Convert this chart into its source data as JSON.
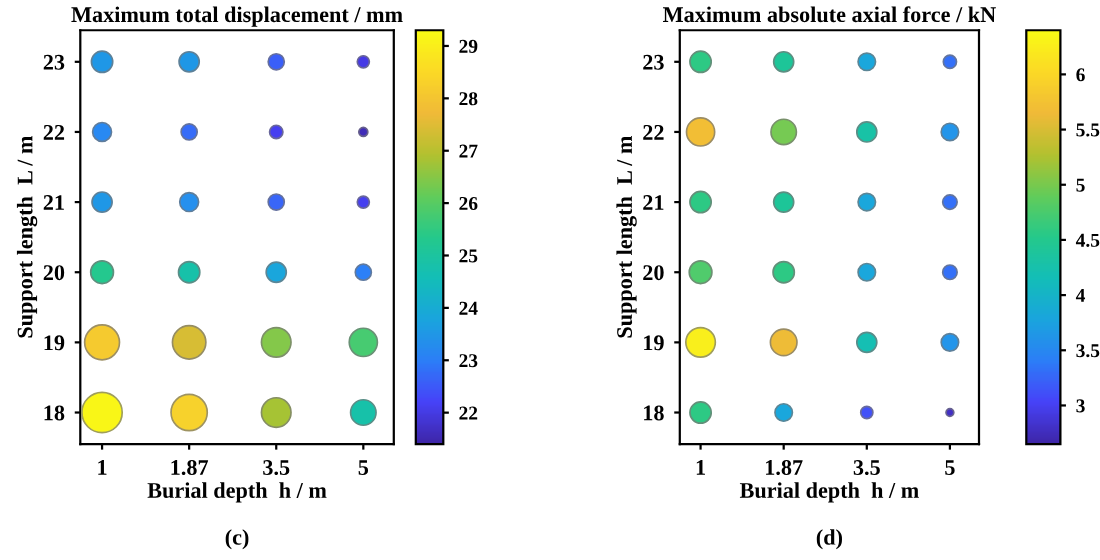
{
  "chart_data": [
    {
      "type": "bubble",
      "title": "Maximum total displacement / mm",
      "xlabel": "Burial depth  h / m",
      "ylabel": "Support length  L / m",
      "categories": [
        "1",
        "1.87",
        "3.5",
        "5"
      ],
      "ylim": [
        17.55,
        23.45
      ],
      "yticks": [
        18,
        19,
        20,
        21,
        22,
        23
      ],
      "clim": [
        21.4,
        29.3
      ],
      "cticks": [
        22,
        23,
        24,
        25,
        26,
        27,
        28,
        29
      ],
      "grid": false,
      "annotations": [
        "(c)"
      ],
      "series": [
        {
          "values": [
            23,
            23,
            23,
            23
          ],
          "cvalues": [
            23.5,
            23.5,
            22.5,
            22.0
          ],
          "colors": [
            "#1f97e6",
            "#1f97e6",
            "#3a5ff8",
            "#4539e5"
          ],
          "sizes": [
            0.28,
            0.25,
            0.16,
            0.09
          ]
        },
        {
          "values": [
            22,
            22,
            22,
            22
          ],
          "cvalues": [
            23.2,
            22.7,
            22.1,
            21.6
          ],
          "colors": [
            "#2889f2",
            "#366cf8",
            "#463ff0",
            "#402cb8"
          ],
          "sizes": [
            0.22,
            0.16,
            0.11,
            0.05
          ]
        },
        {
          "values": [
            21,
            21,
            21,
            21
          ],
          "cvalues": [
            23.5,
            23.3,
            22.6,
            22.1
          ],
          "colors": [
            "#1f97e6",
            "#2690ee",
            "#3966f8",
            "#463ff0"
          ],
          "sizes": [
            0.25,
            0.22,
            0.16,
            0.09
          ]
        },
        {
          "values": [
            20,
            20,
            20,
            20
          ],
          "cvalues": [
            25.3,
            24.8,
            23.8,
            23.0
          ],
          "colors": [
            "#24c88e",
            "#17c1a9",
            "#1aa6dc",
            "#2c80f7"
          ],
          "sizes": [
            0.32,
            0.28,
            0.25,
            0.16
          ]
        },
        {
          "values": [
            19,
            19,
            19,
            19
          ],
          "cvalues": [
            28.0,
            27.4,
            26.5,
            25.8
          ],
          "colors": [
            "#f5ca2f",
            "#d7bd34",
            "#84c84a",
            "#47cb71"
          ],
          "sizes": [
            0.75,
            0.69,
            0.54,
            0.49
          ]
        },
        {
          "values": [
            18,
            18,
            18,
            18
          ],
          "cvalues": [
            29.2,
            28.3,
            26.8,
            24.8
          ],
          "colors": [
            "#f9f617",
            "#f7d22c",
            "#a6c334",
            "#17c1a9"
          ],
          "sizes": [
            1.0,
            0.81,
            0.54,
            0.4
          ]
        }
      ]
    },
    {
      "type": "bubble",
      "title": "Maximum absolute axial force / kN",
      "xlabel": "Burial depth  h / m",
      "ylabel": "Support length  L / m",
      "categories": [
        "1",
        "1.87",
        "3.5",
        "5"
      ],
      "ylim": [
        17.55,
        23.45
      ],
      "yticks": [
        18,
        19,
        20,
        21,
        22,
        23
      ],
      "clim": [
        2.65,
        6.4
      ],
      "cticks": [
        3,
        3.5,
        4,
        4.5,
        5,
        5.5,
        6
      ],
      "grid": false,
      "annotations": [
        "(d)"
      ],
      "series": [
        {
          "values": [
            23,
            23,
            23,
            23
          ],
          "cvalues": [
            4.6,
            4.4,
            3.8,
            3.3
          ],
          "colors": [
            "#2dc984",
            "#1dc598",
            "#1aa7dc",
            "#3470f8"
          ],
          "sizes": [
            0.52,
            0.46,
            0.35,
            0.2
          ]
        },
        {
          "values": [
            22,
            22,
            22,
            22
          ],
          "cvalues": [
            5.7,
            5.0,
            4.3,
            3.6
          ],
          "colors": [
            "#f2be35",
            "#76ca53",
            "#18c2a6",
            "#2395ea"
          ],
          "sizes": [
            0.91,
            0.74,
            0.46,
            0.35
          ]
        },
        {
          "values": [
            21,
            21,
            21,
            21
          ],
          "cvalues": [
            4.6,
            4.4,
            3.8,
            3.3
          ],
          "colors": [
            "#2dc984",
            "#1dc598",
            "#1aa7dc",
            "#3470f8"
          ],
          "sizes": [
            0.52,
            0.46,
            0.35,
            0.24
          ]
        },
        {
          "values": [
            20,
            20,
            20,
            20
          ],
          "cvalues": [
            4.8,
            4.6,
            3.8,
            3.3
          ],
          "colors": [
            "#50cb6c",
            "#2dc984",
            "#1aa7dc",
            "#3470f8"
          ],
          "sizes": [
            0.59,
            0.52,
            0.35,
            0.24
          ]
        },
        {
          "values": [
            19,
            19,
            19,
            19
          ],
          "cvalues": [
            6.3,
            5.6,
            4.2,
            3.6
          ],
          "colors": [
            "#f9ef1c",
            "#eebc37",
            "#15bfb3",
            "#2395ea"
          ],
          "sizes": [
            1.0,
            0.81,
            0.46,
            0.35
          ]
        },
        {
          "values": [
            18,
            18,
            18,
            18
          ],
          "cvalues": [
            4.6,
            3.8,
            3.1,
            2.8
          ],
          "colors": [
            "#2dc984",
            "#1aa7dc",
            "#4251f8",
            "#4230c4"
          ],
          "sizes": [
            0.52,
            0.35,
            0.17,
            0.07
          ]
        }
      ]
    }
  ]
}
